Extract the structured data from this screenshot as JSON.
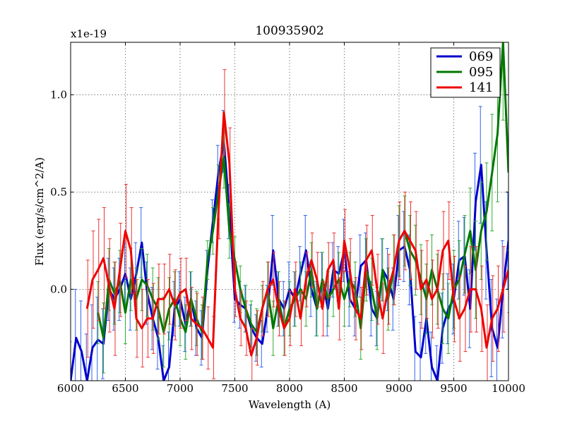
{
  "chart_data": {
    "type": "line",
    "title": "100935902",
    "xlabel": "Wavelength (A)",
    "ylabel": "Flux (erg/s/cm^2/A)",
    "y_offset_label": "x1e-19",
    "xlim": [
      6000,
      10000
    ],
    "ylim": [
      -0.47,
      1.27
    ],
    "grid": true,
    "legend_position": "top-right",
    "x_ticks": [
      6000,
      6500,
      7000,
      7500,
      8000,
      8500,
      9000,
      9500,
      10000
    ],
    "x_tick_labels": [
      "6000",
      "6500",
      "7000",
      "7500",
      "8000",
      "8500",
      "9000",
      "9500",
      "10000"
    ],
    "y_ticks": [
      0.0,
      0.5,
      1.0
    ],
    "y_tick_labels": [
      "0.0",
      "0.5",
      "1.0"
    ],
    "series": [
      {
        "name": "069",
        "color": "#0000cc",
        "points": [
          [
            6000,
            -0.47
          ],
          [
            6050,
            -0.25
          ],
          [
            6100,
            -0.32
          ],
          [
            6150,
            -0.47
          ],
          [
            6200,
            -0.3
          ],
          [
            6250,
            -0.26
          ],
          [
            6300,
            -0.28
          ],
          [
            6350,
            0.0
          ],
          [
            6400,
            -0.05
          ],
          [
            6450,
            0.0
          ],
          [
            6500,
            0.08
          ],
          [
            6550,
            -0.05
          ],
          [
            6600,
            0.08
          ],
          [
            6650,
            0.24
          ],
          [
            6700,
            -0.02
          ],
          [
            6750,
            -0.15
          ],
          [
            6800,
            -0.25
          ],
          [
            6850,
            -0.47
          ],
          [
            6900,
            -0.4
          ],
          [
            6950,
            -0.1
          ],
          [
            7000,
            -0.05
          ],
          [
            7050,
            -0.18
          ],
          [
            7100,
            -0.05
          ],
          [
            7150,
            -0.2
          ],
          [
            7200,
            -0.25
          ],
          [
            7250,
            0.1
          ],
          [
            7300,
            0.35
          ],
          [
            7350,
            0.6
          ],
          [
            7400,
            0.76
          ],
          [
            7450,
            0.4
          ],
          [
            7500,
            -0.05
          ],
          [
            7550,
            -0.08
          ],
          [
            7600,
            -0.1
          ],
          [
            7650,
            -0.2
          ],
          [
            7700,
            -0.25
          ],
          [
            7750,
            -0.28
          ],
          [
            7800,
            -0.1
          ],
          [
            7850,
            0.2
          ],
          [
            7900,
            -0.05
          ],
          [
            7950,
            -0.1
          ],
          [
            8000,
            0.0
          ],
          [
            8050,
            -0.05
          ],
          [
            8100,
            0.08
          ],
          [
            8150,
            0.2
          ],
          [
            8200,
            0.0
          ],
          [
            8250,
            -0.1
          ],
          [
            8300,
            0.05
          ],
          [
            8350,
            -0.1
          ],
          [
            8400,
            0.1
          ],
          [
            8450,
            0.08
          ],
          [
            8500,
            0.2
          ],
          [
            8550,
            -0.05
          ],
          [
            8600,
            -0.1
          ],
          [
            8650,
            0.12
          ],
          [
            8700,
            0.15
          ],
          [
            8750,
            -0.1
          ],
          [
            8800,
            -0.15
          ],
          [
            8850,
            0.1
          ],
          [
            8900,
            0.05
          ],
          [
            8950,
            -0.05
          ],
          [
            9000,
            0.2
          ],
          [
            9050,
            0.22
          ],
          [
            9100,
            0.1
          ],
          [
            9150,
            -0.32
          ],
          [
            9200,
            -0.35
          ],
          [
            9250,
            -0.15
          ],
          [
            9300,
            -0.4
          ],
          [
            9350,
            -0.47
          ],
          [
            9400,
            -0.2
          ],
          [
            9450,
            -0.1
          ],
          [
            9500,
            -0.05
          ],
          [
            9550,
            0.15
          ],
          [
            9600,
            0.17
          ],
          [
            9650,
            -0.1
          ],
          [
            9700,
            0.45
          ],
          [
            9750,
            0.64
          ],
          [
            9800,
            0.2
          ],
          [
            9850,
            -0.2
          ],
          [
            9900,
            -0.3
          ],
          [
            9950,
            0.0
          ],
          [
            10000,
            0.25
          ]
        ],
        "errors": [
          0.2,
          0.25,
          0.26,
          0.24,
          0.22,
          0.22,
          0.18,
          0.16,
          0.16,
          0.16,
          0.16,
          0.16,
          0.16,
          0.18,
          0.16,
          0.16,
          0.16,
          0.18,
          0.18,
          0.14,
          0.14,
          0.14,
          0.14,
          0.14,
          0.14,
          0.1,
          0.11,
          0.14,
          0.16,
          0.14,
          0.12,
          0.12,
          0.12,
          0.12,
          0.12,
          0.12,
          0.12,
          0.18,
          0.14,
          0.14,
          0.14,
          0.14,
          0.14,
          0.18,
          0.14,
          0.14,
          0.14,
          0.14,
          0.14,
          0.14,
          0.16,
          0.14,
          0.14,
          0.16,
          0.14,
          0.14,
          0.14,
          0.16,
          0.16,
          0.16,
          0.18,
          0.18,
          0.18,
          0.18,
          0.18,
          0.18,
          0.18,
          0.18,
          0.18,
          0.18,
          0.18,
          0.2,
          0.2,
          0.2,
          0.25,
          0.3,
          0.25,
          0.25,
          0.25,
          0.25,
          0.25
        ]
      },
      {
        "name": "095",
        "color": "#007700",
        "points": [
          [
            6250,
            -0.12
          ],
          [
            6300,
            -0.25
          ],
          [
            6350,
            0.05
          ],
          [
            6400,
            -0.02
          ],
          [
            6450,
            0.04
          ],
          [
            6500,
            -0.12
          ],
          [
            6550,
            0.05
          ],
          [
            6600,
            -0.05
          ],
          [
            6650,
            0.05
          ],
          [
            6700,
            0.02
          ],
          [
            6750,
            -0.05
          ],
          [
            6800,
            -0.1
          ],
          [
            6850,
            -0.22
          ],
          [
            6900,
            -0.1
          ],
          [
            6950,
            -0.05
          ],
          [
            7000,
            -0.15
          ],
          [
            7050,
            -0.22
          ],
          [
            7100,
            -0.05
          ],
          [
            7150,
            -0.15
          ],
          [
            7200,
            -0.22
          ],
          [
            7250,
            0.15
          ],
          [
            7300,
            0.3
          ],
          [
            7350,
            0.5
          ],
          [
            7400,
            0.68
          ],
          [
            7450,
            0.3
          ],
          [
            7500,
            0.15
          ],
          [
            7550,
            0.0
          ],
          [
            7600,
            -0.1
          ],
          [
            7650,
            -0.18
          ],
          [
            7700,
            -0.22
          ],
          [
            7750,
            -0.1
          ],
          [
            7800,
            0.0
          ],
          [
            7850,
            -0.2
          ],
          [
            7900,
            -0.05
          ],
          [
            7950,
            -0.2
          ],
          [
            8000,
            -0.1
          ],
          [
            8050,
            -0.05
          ],
          [
            8100,
            0.0
          ],
          [
            8150,
            -0.05
          ],
          [
            8200,
            0.1
          ],
          [
            8250,
            -0.1
          ],
          [
            8300,
            0.05
          ],
          [
            8350,
            -0.05
          ],
          [
            8400,
            0.0
          ],
          [
            8450,
            0.05
          ],
          [
            8500,
            -0.05
          ],
          [
            8550,
            0.05
          ],
          [
            8600,
            0.0
          ],
          [
            8650,
            -0.2
          ],
          [
            8700,
            0.1
          ],
          [
            8750,
            0.0
          ],
          [
            8800,
            -0.15
          ],
          [
            8850,
            0.1
          ],
          [
            8900,
            -0.05
          ],
          [
            8950,
            0.1
          ],
          [
            9000,
            0.25
          ],
          [
            9050,
            0.3
          ],
          [
            9100,
            0.2
          ],
          [
            9150,
            0.15
          ],
          [
            9200,
            0.05
          ],
          [
            9250,
            -0.05
          ],
          [
            9300,
            0.1
          ],
          [
            9350,
            0.0
          ],
          [
            9400,
            -0.1
          ],
          [
            9450,
            -0.15
          ],
          [
            9500,
            0.0
          ],
          [
            9550,
            0.05
          ],
          [
            9600,
            0.18
          ],
          [
            9650,
            0.3
          ],
          [
            9700,
            0.1
          ],
          [
            9750,
            0.3
          ],
          [
            9800,
            0.4
          ],
          [
            9850,
            0.6
          ],
          [
            9900,
            0.8
          ],
          [
            9950,
            1.27
          ],
          [
            10000,
            0.6
          ]
        ],
        "errors": [
          0.16,
          0.18,
          0.16,
          0.16,
          0.16,
          0.16,
          0.16,
          0.16,
          0.16,
          0.16,
          0.16,
          0.16,
          0.18,
          0.16,
          0.14,
          0.14,
          0.14,
          0.14,
          0.14,
          0.14,
          0.1,
          0.12,
          0.14,
          0.16,
          0.14,
          0.12,
          0.12,
          0.12,
          0.12,
          0.12,
          0.12,
          0.14,
          0.14,
          0.14,
          0.14,
          0.14,
          0.14,
          0.14,
          0.14,
          0.14,
          0.14,
          0.14,
          0.14,
          0.14,
          0.14,
          0.14,
          0.14,
          0.14,
          0.16,
          0.16,
          0.16,
          0.16,
          0.16,
          0.16,
          0.18,
          0.18,
          0.18,
          0.18,
          0.18,
          0.18,
          0.18,
          0.18,
          0.18,
          0.18,
          0.18,
          0.2,
          0.2,
          0.2,
          0.22,
          0.25,
          0.25,
          0.25,
          0.3,
          0.35,
          0.4,
          0.4
        ]
      },
      {
        "name": "141",
        "color": "#ee0000",
        "points": [
          [
            6150,
            -0.1
          ],
          [
            6200,
            0.05
          ],
          [
            6250,
            0.1
          ],
          [
            6300,
            0.16
          ],
          [
            6350,
            0.02
          ],
          [
            6400,
            -0.1
          ],
          [
            6450,
            0.1
          ],
          [
            6500,
            0.3
          ],
          [
            6550,
            0.2
          ],
          [
            6600,
            -0.15
          ],
          [
            6650,
            -0.2
          ],
          [
            6700,
            -0.15
          ],
          [
            6750,
            -0.15
          ],
          [
            6800,
            -0.05
          ],
          [
            6850,
            -0.05
          ],
          [
            6900,
            0.0
          ],
          [
            6950,
            -0.08
          ],
          [
            7000,
            -0.02
          ],
          [
            7050,
            0.0
          ],
          [
            7100,
            -0.15
          ],
          [
            7150,
            -0.18
          ],
          [
            7200,
            -0.2
          ],
          [
            7250,
            -0.25
          ],
          [
            7300,
            -0.3
          ],
          [
            7350,
            0.4
          ],
          [
            7400,
            0.91
          ],
          [
            7450,
            0.65
          ],
          [
            7500,
            0.0
          ],
          [
            7550,
            -0.15
          ],
          [
            7600,
            -0.2
          ],
          [
            7650,
            -0.34
          ],
          [
            7700,
            -0.25
          ],
          [
            7750,
            -0.1
          ],
          [
            7800,
            0.0
          ],
          [
            7850,
            0.05
          ],
          [
            7900,
            -0.1
          ],
          [
            7950,
            -0.2
          ],
          [
            8000,
            -0.15
          ],
          [
            8050,
            0.0
          ],
          [
            8100,
            -0.15
          ],
          [
            8150,
            0.05
          ],
          [
            8200,
            0.15
          ],
          [
            8250,
            0.05
          ],
          [
            8300,
            -0.1
          ],
          [
            8350,
            0.1
          ],
          [
            8400,
            0.15
          ],
          [
            8450,
            -0.1
          ],
          [
            8500,
            0.25
          ],
          [
            8550,
            0.1
          ],
          [
            8600,
            -0.1
          ],
          [
            8650,
            -0.15
          ],
          [
            8700,
            0.15
          ],
          [
            8750,
            0.2
          ],
          [
            8800,
            0.0
          ],
          [
            8850,
            -0.15
          ],
          [
            8900,
            0.0
          ],
          [
            8950,
            0.1
          ],
          [
            9000,
            0.25
          ],
          [
            9050,
            0.3
          ],
          [
            9100,
            0.25
          ],
          [
            9150,
            0.2
          ],
          [
            9200,
            0.0
          ],
          [
            9250,
            0.05
          ],
          [
            9300,
            -0.05
          ],
          [
            9350,
            0.0
          ],
          [
            9400,
            0.2
          ],
          [
            9450,
            0.25
          ],
          [
            9500,
            -0.05
          ],
          [
            9550,
            -0.15
          ],
          [
            9600,
            -0.1
          ],
          [
            9650,
            0.0
          ],
          [
            9700,
            0.0
          ],
          [
            9750,
            -0.1
          ],
          [
            9800,
            -0.3
          ],
          [
            9850,
            -0.15
          ],
          [
            9900,
            -0.1
          ],
          [
            9950,
            0.0
          ],
          [
            10000,
            0.1
          ]
        ],
        "errors": [
          0.25,
          0.25,
          0.26,
          0.26,
          0.24,
          0.24,
          0.24,
          0.24,
          0.22,
          0.2,
          0.2,
          0.2,
          0.18,
          0.18,
          0.18,
          0.18,
          0.18,
          0.18,
          0.16,
          0.16,
          0.16,
          0.16,
          0.16,
          0.16,
          0.14,
          0.22,
          0.18,
          0.14,
          0.14,
          0.14,
          0.14,
          0.14,
          0.14,
          0.14,
          0.14,
          0.14,
          0.14,
          0.14,
          0.14,
          0.14,
          0.14,
          0.14,
          0.14,
          0.14,
          0.14,
          0.14,
          0.16,
          0.16,
          0.16,
          0.16,
          0.16,
          0.18,
          0.18,
          0.18,
          0.18,
          0.18,
          0.18,
          0.2,
          0.2,
          0.2,
          0.2,
          0.2,
          0.2,
          0.2,
          0.2,
          0.2,
          0.2,
          0.22,
          0.22,
          0.22,
          0.22,
          0.22,
          0.22,
          0.22,
          0.22,
          0.22,
          0.22,
          0.22
        ]
      }
    ]
  }
}
